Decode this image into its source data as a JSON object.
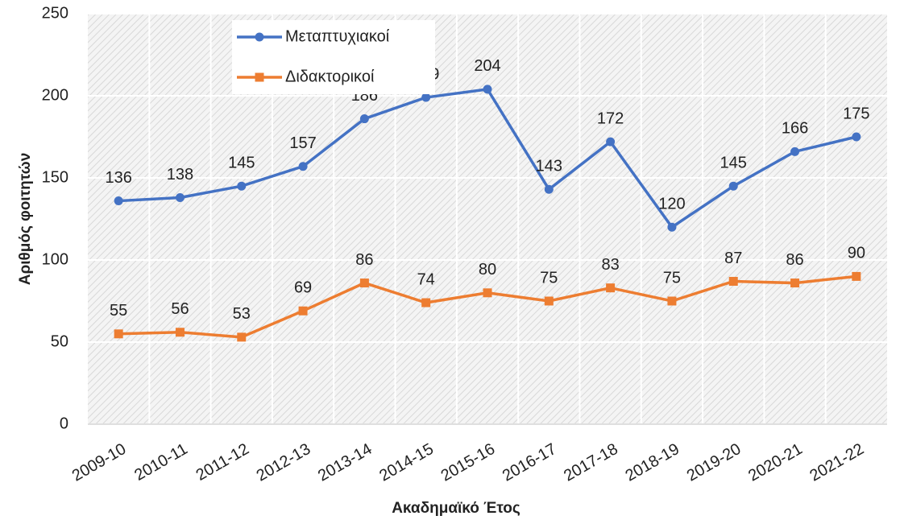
{
  "chart_data": {
    "type": "line",
    "x_label": "Ακαδημαϊκό Έτος",
    "y_label": "Αριθμός φοιτητών",
    "categories": [
      "2009-10",
      "2010-11",
      "2011-12",
      "2012-13",
      "2013-14",
      "2014-15",
      "2015-16",
      "2016-17",
      "2017-18",
      "2018-19",
      "2019-20",
      "2020-21",
      "2021-22"
    ],
    "series": [
      {
        "name": "Μεταπτυχιακοί",
        "color": "#4472c4",
        "marker": "circle",
        "values": [
          136,
          138,
          145,
          157,
          186,
          199,
          204,
          143,
          172,
          120,
          145,
          166,
          175
        ]
      },
      {
        "name": "Διδακτορικοί",
        "color": "#ed7d31",
        "marker": "square",
        "values": [
          55,
          56,
          53,
          69,
          86,
          74,
          80,
          75,
          83,
          75,
          87,
          86,
          90
        ]
      }
    ],
    "ylim": [
      0,
      250
    ],
    "yticks": [
      0,
      50,
      100,
      150,
      200,
      250
    ],
    "grid": true,
    "legend": "upper left",
    "data_labels": true
  }
}
